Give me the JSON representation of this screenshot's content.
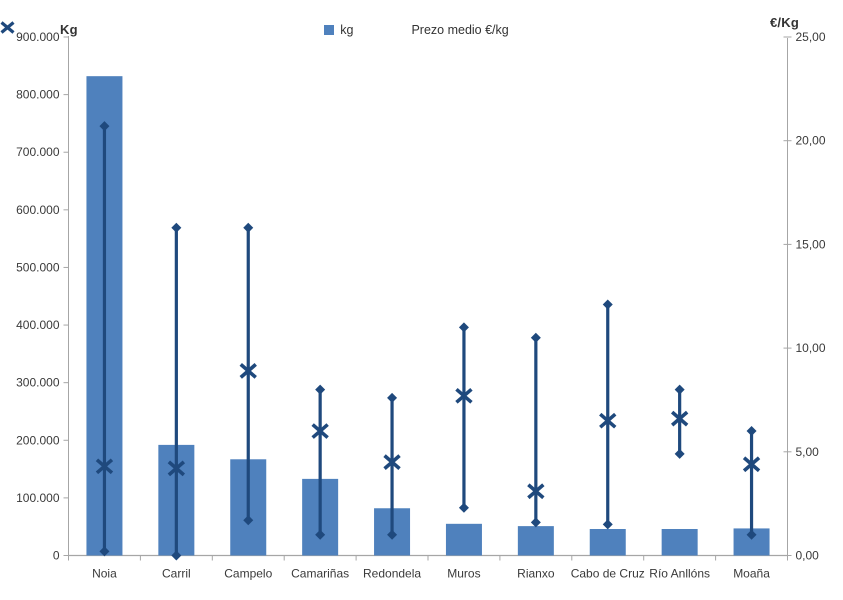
{
  "legend": {
    "kg_label": "kg",
    "price_label": "Prezo medio €/kg"
  },
  "colors": {
    "bar": "#4F81BD",
    "price_line": "#1F497D",
    "axis_line": "#A6A6A6",
    "text": "#3A3A3A"
  },
  "chart_data": {
    "type": "bar",
    "title": "",
    "legend_position": "top",
    "grid": false,
    "categories": [
      "Noia",
      "Carril",
      "Campelo",
      "Camariñas",
      "Redondela",
      "Muros",
      "Rianxo",
      "Cabo de Cruz",
      "Río Anllóns",
      "Moaña"
    ],
    "series": [
      {
        "name": "kg",
        "type": "bar",
        "axis": "left",
        "values": [
          832000,
          192000,
          167000,
          133000,
          82000,
          55000,
          51000,
          46000,
          46000,
          47000
        ]
      },
      {
        "name": "Prezo medio €/kg",
        "type": "scatter-x",
        "axis": "right",
        "values": [
          4.3,
          4.2,
          8.9,
          6.0,
          4.5,
          7.7,
          3.1,
          6.5,
          6.6,
          4.4
        ]
      },
      {
        "name": "price-range-high",
        "type": "range-high",
        "axis": "right",
        "values": [
          20.7,
          15.8,
          15.8,
          8.0,
          7.6,
          11.0,
          10.5,
          12.1,
          8.0,
          6.0
        ]
      },
      {
        "name": "price-range-low",
        "type": "range-low",
        "axis": "right",
        "values": [
          0.2,
          0.0,
          1.7,
          1.0,
          1.0,
          2.3,
          1.6,
          1.5,
          4.9,
          1.0
        ]
      }
    ],
    "left_axis": {
      "title": "Kg",
      "min": 0,
      "max": 900000,
      "step": 100000,
      "tick_labels": [
        "900.000",
        "800.000",
        "700.000",
        "600.000",
        "500.000",
        "400.000",
        "300.000",
        "200.000",
        "100.000",
        "0"
      ]
    },
    "right_axis": {
      "title": "€/Kg",
      "min": 0,
      "max": 25,
      "step": 5,
      "tick_labels": [
        "25,00",
        "20,00",
        "15,00",
        "10,00",
        "5,00",
        "0,00"
      ]
    }
  }
}
